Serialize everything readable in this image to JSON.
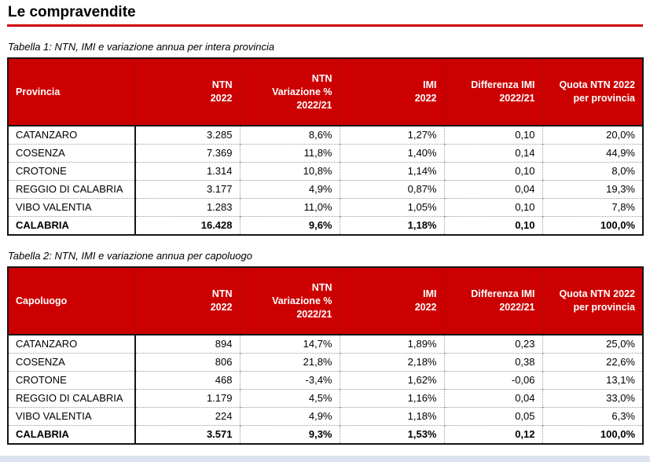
{
  "page": {
    "title": "Le compravendite",
    "accent_color": "#cc0000",
    "bottom_strip_color": "#dce3ee"
  },
  "tables": [
    {
      "caption": "Tabella 1: NTN, IMI e variazione annua per intera provincia",
      "headers": [
        "Provincia",
        "NTN\n2022",
        "NTN\nVariazione %\n2022/21",
        "IMI\n2022",
        "Differenza IMI\n2022/21",
        "Quota NTN 2022\nper provincia"
      ],
      "rows": [
        [
          "CATANZARO",
          "3.285",
          "8,6%",
          "1,27%",
          "0,10",
          "20,0%"
        ],
        [
          "COSENZA",
          "7.369",
          "11,8%",
          "1,40%",
          "0,14",
          "44,9%"
        ],
        [
          "CROTONE",
          "1.314",
          "10,8%",
          "1,14%",
          "0,10",
          "8,0%"
        ],
        [
          "REGGIO DI CALABRIA",
          "3.177",
          "4,9%",
          "0,87%",
          "0,04",
          "19,3%"
        ],
        [
          "VIBO VALENTIA",
          "1.283",
          "11,0%",
          "1,05%",
          "0,10",
          "7,8%"
        ]
      ],
      "total": [
        "CALABRIA",
        "16.428",
        "9,6%",
        "1,18%",
        "0,10",
        "100,0%"
      ]
    },
    {
      "caption": "Tabella 2: NTN, IMI e variazione annua per capoluogo",
      "headers": [
        "Capoluogo",
        "NTN\n2022",
        "NTN\nVariazione %\n2022/21",
        "IMI\n2022",
        "Differenza IMI\n2022/21",
        "Quota NTN 2022\nper provincia"
      ],
      "rows": [
        [
          "CATANZARO",
          "894",
          "14,7%",
          "1,89%",
          "0,23",
          "25,0%"
        ],
        [
          "COSENZA",
          "806",
          "21,8%",
          "2,18%",
          "0,38",
          "22,6%"
        ],
        [
          "CROTONE",
          "468",
          "-3,4%",
          "1,62%",
          "-0,06",
          "13,1%"
        ],
        [
          "REGGIO DI CALABRIA",
          "1.179",
          "4,5%",
          "1,16%",
          "0,04",
          "33,0%"
        ],
        [
          "VIBO VALENTIA",
          "224",
          "4,9%",
          "1,18%",
          "0,05",
          "6,3%"
        ]
      ],
      "total": [
        "CALABRIA",
        "3.571",
        "9,3%",
        "1,53%",
        "0,12",
        "100,0%"
      ]
    }
  ]
}
